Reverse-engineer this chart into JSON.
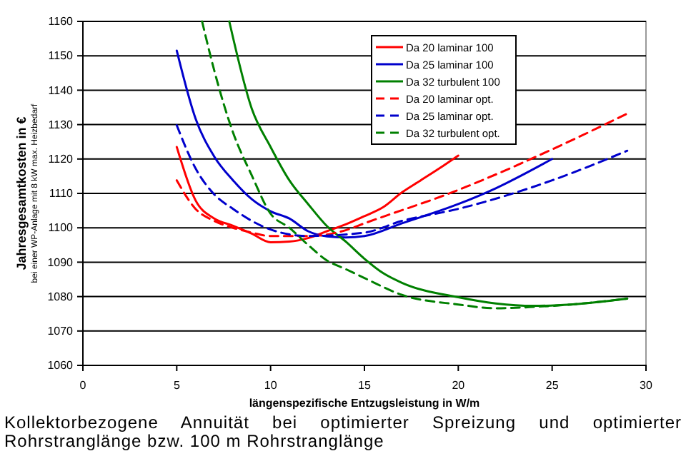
{
  "chart_data": {
    "type": "line",
    "xlabel": "längenspezifische Entzugsleistung in W/m",
    "ylabel": "Jahresgesamtkosten in €\nbei einer WP-Anlage mit 8 kW max. Heizbedarf",
    "annotations": [
      "Kollektorbezogene Annuität bei optimierter Spreizung und optimierter Rohrstranglänge bzw. 100 m Rohrstranglänge"
    ],
    "xlim": [
      0,
      30
    ],
    "xticks": [
      0,
      5,
      10,
      15,
      20,
      25,
      30
    ],
    "ylim": [
      1060,
      1160
    ],
    "yticks": [
      1060,
      1070,
      1080,
      1090,
      1100,
      1110,
      1120,
      1130,
      1140,
      1150,
      1160
    ],
    "grid": "y",
    "legend": "top right",
    "marker": "none",
    "series": [
      {
        "name": "Da 20 laminar 100",
        "color": "#ff0000",
        "line_style": "solid",
        "x": [
          5,
          6,
          7,
          8,
          9,
          10,
          11,
          12,
          13,
          14,
          15,
          16,
          17,
          18,
          19,
          20
        ],
        "values": [
          1123.5,
          1108,
          1102.7,
          1100.6,
          1098.3,
          1095.8,
          1096,
          1097,
          1099,
          1101,
          1103.4,
          1106,
          1110.3,
          1113.8,
          1117.3,
          1121
        ]
      },
      {
        "name": "Da 25 laminar 100",
        "color": "#0000cc",
        "line_style": "solid",
        "x": [
          5,
          6,
          7,
          8,
          9,
          10,
          11,
          12,
          13,
          14,
          15,
          17,
          20,
          22,
          25
        ],
        "values": [
          1151.5,
          1131.8,
          1120.7,
          1113.8,
          1108.3,
          1104.8,
          1102.7,
          1099,
          1097.5,
          1097.2,
          1097.6,
          1101.3,
          1106.9,
          1111.5,
          1120
        ]
      },
      {
        "name": "Da 32 turbulent 100",
        "color": "#008000",
        "line_style": "solid",
        "x": [
          7.8,
          9,
          10,
          11,
          12,
          13,
          14,
          15,
          16,
          17,
          20,
          22,
          24,
          26,
          29
        ],
        "values": [
          1160,
          1134.6,
          1123.5,
          1113.8,
          1106.9,
          1100.5,
          1096,
          1091,
          1086.8,
          1084,
          1079.8,
          1078,
          1077.3,
          1077.7,
          1079.4
        ]
      },
      {
        "name": "Da 20 laminar opt.",
        "color": "#ff0000",
        "line_style": "dashed",
        "x": [
          5,
          6,
          7,
          8,
          9,
          10,
          12,
          14,
          15,
          20,
          25,
          29
        ],
        "values": [
          1113.8,
          1105.5,
          1102,
          1100,
          1098.6,
          1097.6,
          1097.6,
          1099.3,
          1101.3,
          1111,
          1122.8,
          1133.2
        ]
      },
      {
        "name": "Da 25 laminar opt.",
        "color": "#0000cc",
        "line_style": "dashed",
        "x": [
          5,
          6,
          7,
          8,
          9,
          10,
          12,
          15,
          17,
          20,
          25,
          29
        ],
        "values": [
          1129.8,
          1117.3,
          1109.7,
          1105.5,
          1102,
          1099.5,
          1097.6,
          1098.6,
          1102,
          1105.5,
          1113.8,
          1122.4
        ]
      },
      {
        "name": "Da 32 turbulent opt.",
        "color": "#008000",
        "line_style": "dashed",
        "x": [
          6.35,
          7,
          8,
          9,
          10,
          11,
          12,
          13,
          14,
          15,
          17,
          20,
          22,
          24,
          26,
          29
        ],
        "values": [
          1160,
          1145.7,
          1127.7,
          1115.2,
          1104.1,
          1100,
          1095,
          1090.5,
          1088,
          1085.4,
          1080.5,
          1077.7,
          1076.6,
          1077,
          1077.7,
          1079.4
        ]
      }
    ]
  }
}
